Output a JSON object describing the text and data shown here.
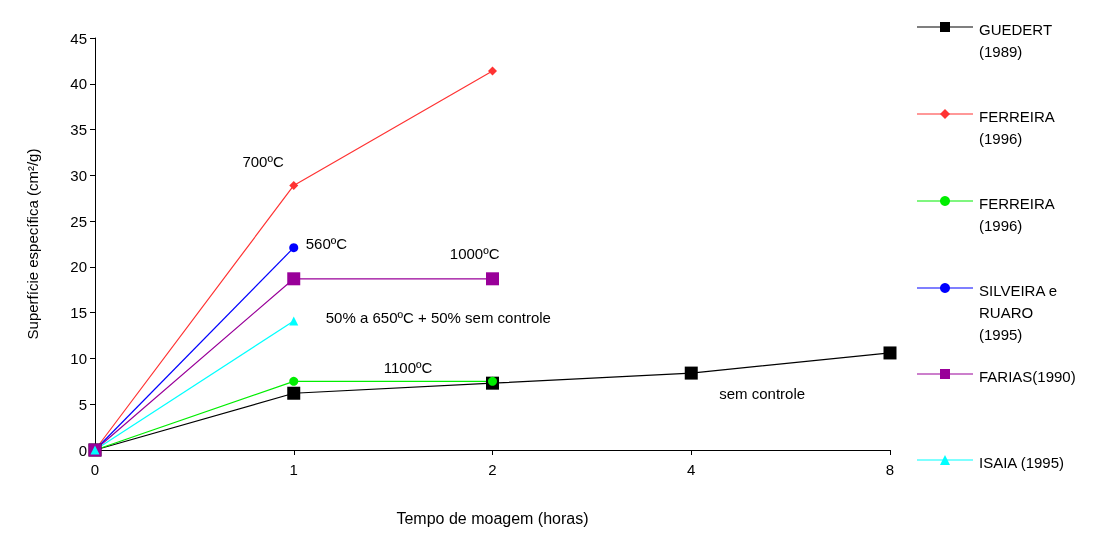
{
  "chart_data": {
    "type": "line",
    "xlabel": "Tempo de moagem (horas)",
    "ylabel": "Superfície específica (cm²/g)",
    "categories": [
      "0",
      "1",
      "2",
      "4",
      "8"
    ],
    "series": [
      {
        "name": "GUEDERT\n(1989)",
        "color": "#000000",
        "marker": "square",
        "values": [
          0,
          6.2,
          7.3,
          8.4,
          10.6
        ]
      },
      {
        "name": "FERREIRA\n(1996)",
        "color": "#ff3333",
        "marker": "diamond",
        "values": [
          0,
          28.9,
          41.4,
          null,
          null
        ]
      },
      {
        "name": "FERREIRA\n(1996)",
        "color": "#00ee00",
        "marker": "circle",
        "values": [
          0,
          7.5,
          7.5,
          null,
          null
        ]
      },
      {
        "name": "SILVEIRA e\nRUARO\n(1995)",
        "color": "#0000ff",
        "marker": "circle",
        "values": [
          0,
          22.1,
          null,
          null,
          null
        ]
      },
      {
        "name": "FARIAS(1990)",
        "color": "#990099",
        "marker": "square",
        "values": [
          0,
          18.7,
          18.7,
          null,
          null
        ]
      },
      {
        "name": "ISAIA (1995)",
        "color": "#00ffff",
        "marker": "triangle",
        "values": [
          0,
          14.1,
          null,
          null,
          null
        ]
      }
    ],
    "ylim": [
      0,
      45
    ],
    "yticks": [
      0,
      5,
      10,
      15,
      20,
      25,
      30,
      35,
      40,
      45
    ],
    "grid": false,
    "legend": "right",
    "annotations": [
      {
        "text": "700ºC",
        "x": "1",
        "y": 28.9
      },
      {
        "text": "560ºC",
        "x": "1",
        "y": 22.1
      },
      {
        "text": "1000ºC",
        "x": "2",
        "y": 18.7
      },
      {
        "text": "50% a 650ºC + 50% sem controle",
        "x": "1",
        "y": 14.1
      },
      "1100ºC",
      {
        "text": "sem controle",
        "x": "4",
        "y": 8.4
      }
    ]
  }
}
